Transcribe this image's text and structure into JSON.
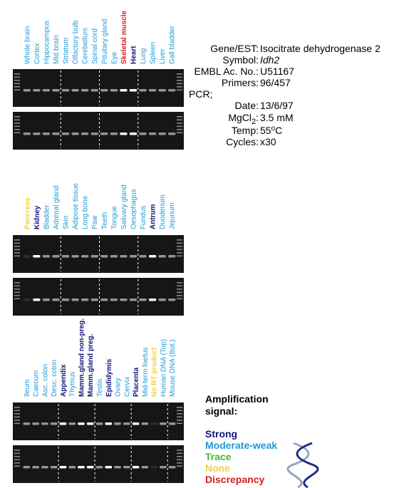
{
  "panels": [
    {
      "lanes": [
        {
          "label": "Whole brain",
          "color": "#1f9ad6"
        },
        {
          "label": "Cortex",
          "color": "#1f9ad6"
        },
        {
          "label": "Hippocampus",
          "color": "#1f9ad6"
        },
        {
          "label": "Mid brain",
          "color": "#1f9ad6"
        },
        {
          "label": "Striatum",
          "color": "#1f9ad6"
        },
        {
          "label": "Olfactory bulb",
          "color": "#1f9ad6"
        },
        {
          "label": "Cerebellum",
          "color": "#1f9ad6"
        },
        {
          "label": "Spinal cord",
          "color": "#1f9ad6"
        },
        {
          "label": "Pituitary gland",
          "color": "#1f9ad6"
        },
        {
          "label": "Eye",
          "color": "#1f9ad6"
        },
        {
          "label": "Skeletal muscle",
          "color": "#d42020"
        },
        {
          "label": "Heart",
          "color": "#14147a"
        },
        {
          "label": "Lung",
          "color": "#1f9ad6"
        },
        {
          "label": "Spleen",
          "color": "#1f9ad6"
        },
        {
          "label": "Liver",
          "color": "#1f9ad6"
        },
        {
          "label": "Gall bladder",
          "color": "#1f9ad6"
        }
      ]
    },
    {
      "lanes": [
        {
          "label": "Pancreas",
          "color": "#f5d33a"
        },
        {
          "label": "Kidney",
          "color": "#14147a"
        },
        {
          "label": "Bladder",
          "color": "#1f9ad6"
        },
        {
          "label": "Adrenal gland",
          "color": "#1f9ad6"
        },
        {
          "label": "Skin",
          "color": "#1f9ad6"
        },
        {
          "label": "Adipose tissue",
          "color": "#1f9ad6"
        },
        {
          "label": "Long bone",
          "color": "#1f9ad6"
        },
        {
          "label": "Paw",
          "color": "#1f9ad6"
        },
        {
          "label": "Teeth",
          "color": "#1f9ad6"
        },
        {
          "label": "Tongue",
          "color": "#1f9ad6"
        },
        {
          "label": "Salivary gland",
          "color": "#1f9ad6"
        },
        {
          "label": "Oesophagus",
          "color": "#1f9ad6"
        },
        {
          "label": "Fundus",
          "color": "#1f9ad6"
        },
        {
          "label": "Antrum",
          "color": "#14147a"
        },
        {
          "label": "Duodenum",
          "color": "#1f9ad6"
        },
        {
          "label": "Jejunum",
          "color": "#1f9ad6"
        }
      ]
    },
    {
      "lanes": [
        {
          "label": "Ileum",
          "color": "#1f9ad6"
        },
        {
          "label": "Caecum",
          "color": "#1f9ad6"
        },
        {
          "label": "Asc. colon",
          "color": "#1f9ad6"
        },
        {
          "label": "Desc. colon",
          "color": "#1f9ad6"
        },
        {
          "label": "Appendix",
          "color": "#14147a"
        },
        {
          "label": "Thymus",
          "color": "#1f9ad6"
        },
        {
          "label": "Mamm.gland non-preg.",
          "color": "#14147a"
        },
        {
          "label": "Mamm.gland preg.",
          "color": "#14147a"
        },
        {
          "label": "Testis",
          "color": "#1f9ad6"
        },
        {
          "label": "Epididymis",
          "color": "#14147a"
        },
        {
          "label": "Ovary",
          "color": "#1f9ad6"
        },
        {
          "label": "Cervix",
          "color": "#1f9ad6"
        },
        {
          "label": "Placenta",
          "color": "#14147a"
        },
        {
          "label": "Mid-term foetus",
          "color": "#1f9ad6"
        },
        {
          "label": "No RT product",
          "color": "#f5d33a"
        },
        {
          "label": "Human DNA (Top)",
          "color": "#1f9ad6"
        },
        {
          "label": "Mouse DNA (Bot.)",
          "color": "#1f9ad6"
        }
      ]
    }
  ],
  "info": {
    "gene_label": "Gene/EST:",
    "gene": "Isocitrate dehydrogenase 2",
    "symbol_label": "Symbol:",
    "symbol": "Idh2",
    "embl_label": "EMBL Ac. No.:",
    "embl": "U51167",
    "primers_label": "Primers:",
    "primers": "96/457",
    "pcr_label": "PCR;",
    "date_label": "Date:",
    "date": "13/6/97",
    "mgcl_label": [
      "MgCl",
      "2",
      ":"
    ],
    "mgcl": "3.5 mM",
    "temp_label": "Temp:",
    "temp": [
      "55",
      "o",
      "C"
    ],
    "cycles_label": "Cycles:",
    "cycles": "x30"
  },
  "legend": {
    "title": [
      "Amplification",
      "signal:"
    ],
    "items": [
      {
        "label": "Strong",
        "color": "#14147a"
      },
      {
        "label": "Moderate-weak",
        "color": "#1f9ad6"
      },
      {
        "label": "Trace",
        "color": "#4cb82c"
      },
      {
        "label": "None",
        "color": "#f5d33a"
      },
      {
        "label": "Discrepancy",
        "color": "#d42020"
      }
    ]
  }
}
